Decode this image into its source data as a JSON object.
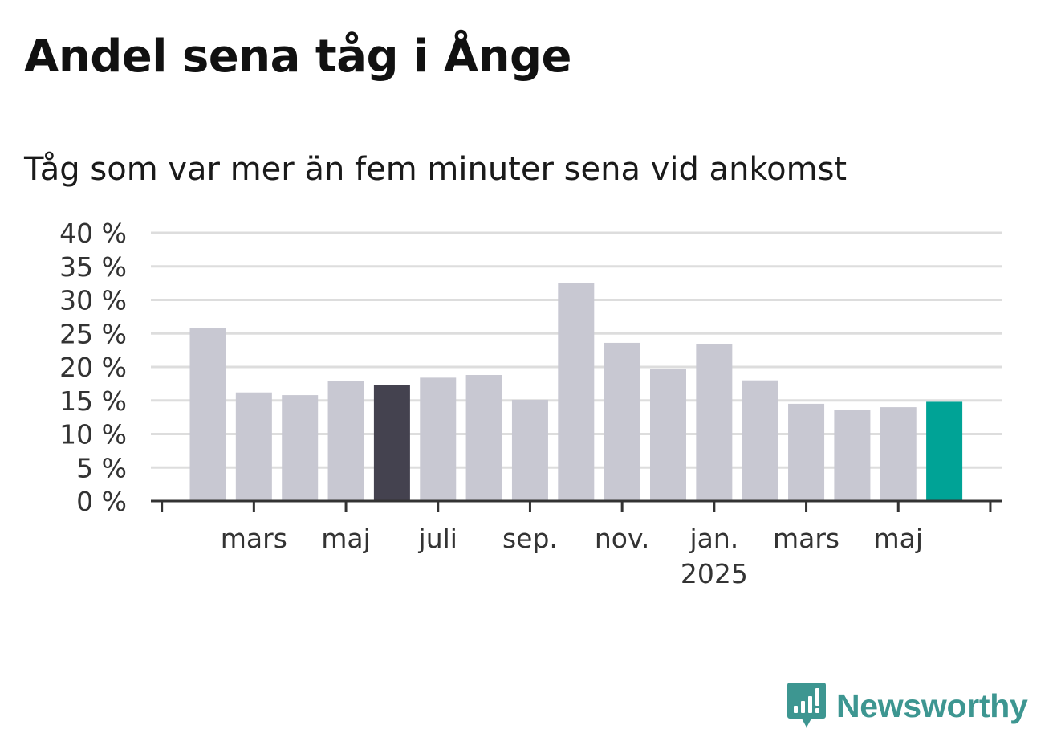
{
  "title": "Andel sena tåg i Ånge",
  "subtitle": "Tåg som var mer än fem minuter sena vid ankomst",
  "brand": {
    "name": "Newsworthy",
    "color": "#3d9691",
    "icon": "newsworthy-logo-icon"
  },
  "colors": {
    "default_bar": "#c8c8d2",
    "highlight_dark": "#44424f",
    "highlight_current": "#00a396",
    "grid": "#dddddd",
    "axis": "#333333"
  },
  "chart_data": {
    "type": "bar",
    "categories": [
      "2024-02",
      "2024-03",
      "2024-04",
      "2024-05",
      "2024-06",
      "2024-07",
      "2024-08",
      "2024-09",
      "2024-10",
      "2024-11",
      "2024-12",
      "2025-01",
      "2025-02",
      "2025-03",
      "2025-04",
      "2025-05",
      "2025-06"
    ],
    "values": [
      25.8,
      16.2,
      15.8,
      17.9,
      17.3,
      18.4,
      18.8,
      15.1,
      32.5,
      23.6,
      19.7,
      23.4,
      18.0,
      14.5,
      13.6,
      14.0,
      14.8
    ],
    "highlight": {
      "4": "dark",
      "16": "current"
    },
    "ylim": [
      0,
      40
    ],
    "yticks": [
      "0 %",
      "5 %",
      "10 %",
      "15 %",
      "20 %",
      "25 %",
      "30 %",
      "35 %",
      "40 %"
    ],
    "xticks": [
      {
        "label": "mars",
        "category": 1
      },
      {
        "label": "maj",
        "category": 3
      },
      {
        "label": "juli",
        "category": 5
      },
      {
        "label": "sep.",
        "category": 7
      },
      {
        "label": "nov.",
        "category": 9
      },
      {
        "label": "jan.",
        "category": 11,
        "sublabel": "2025"
      },
      {
        "label": "mars",
        "category": 13
      },
      {
        "label": "maj",
        "category": 15
      }
    ],
    "grid": true,
    "legend": "none"
  }
}
